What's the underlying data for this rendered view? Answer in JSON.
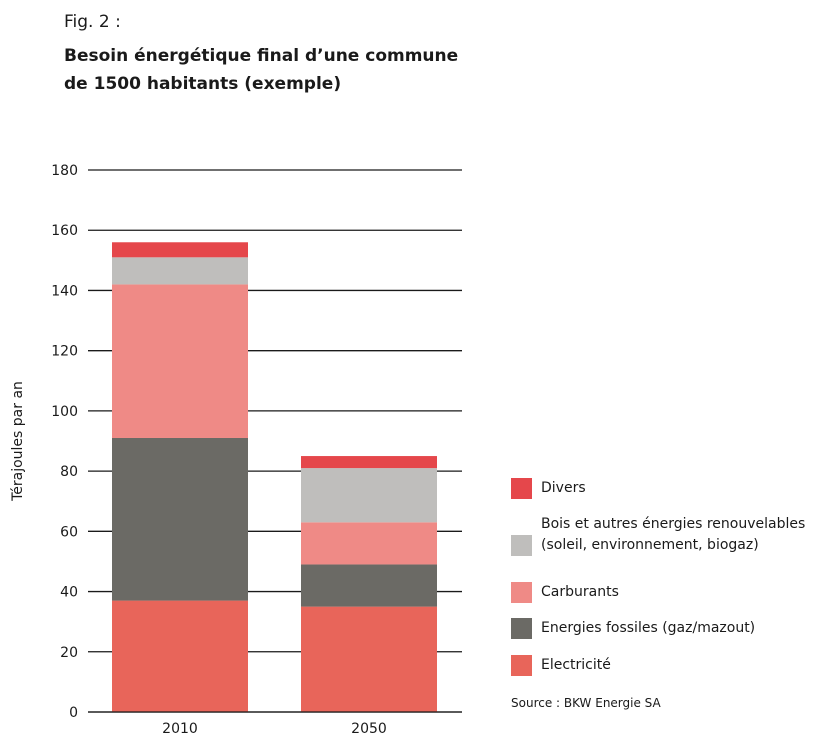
{
  "figure": {
    "label": "Fig. 2 :",
    "title": "Besoin énergétique final d’une commune de 1500 habitants (exemple)",
    "source": "Source : BKW Energie SA"
  },
  "chart_data": {
    "type": "bar",
    "stacked": true,
    "title": "Besoin énergétique final d’une commune de 1500 habitants (exemple)",
    "xlabel": "",
    "ylabel": "Térajoules par an",
    "ylim": [
      0,
      180
    ],
    "yticks": [
      0,
      20,
      40,
      60,
      80,
      100,
      120,
      140,
      160,
      180
    ],
    "grid": true,
    "legend_position": "right",
    "categories": [
      "2010",
      "2050"
    ],
    "series": [
      {
        "name": "Electricité",
        "color": "#e8655a",
        "values": [
          37,
          35
        ]
      },
      {
        "name": "Energies fossiles (gaz/mazout)",
        "color": "#6b6a65",
        "values": [
          54,
          14
        ]
      },
      {
        "name": "Carburants",
        "color": "#ef8a86",
        "values": [
          51,
          14
        ]
      },
      {
        "name": "Bois et autres énergies renouvelables (soleil, environnement, biogaz)",
        "color": "#bfbebc",
        "values": [
          9,
          18
        ]
      },
      {
        "name": "Divers",
        "color": "#e5474b",
        "values": [
          5,
          4
        ]
      }
    ]
  }
}
